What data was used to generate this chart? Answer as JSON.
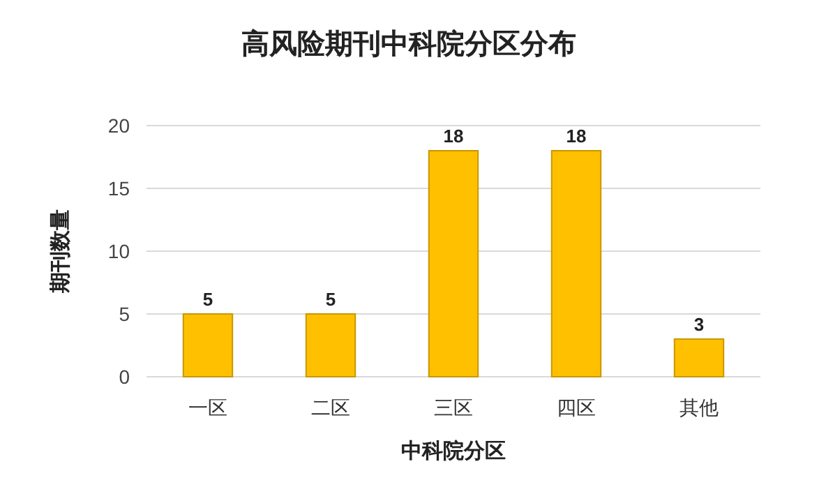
{
  "chart_data": {
    "type": "bar",
    "title": "高风险期刊中科院分区分布",
    "xlabel": "中科院分区",
    "ylabel": "期刊数量",
    "categories": [
      "一区",
      "二区",
      "三区",
      "四区",
      "其他"
    ],
    "values": [
      5,
      5,
      18,
      18,
      3
    ],
    "color": "#ffc000",
    "ylim": [
      0,
      20
    ],
    "yticks": [
      0,
      5,
      10,
      15,
      20
    ],
    "grid": "y",
    "data_labels": true
  }
}
